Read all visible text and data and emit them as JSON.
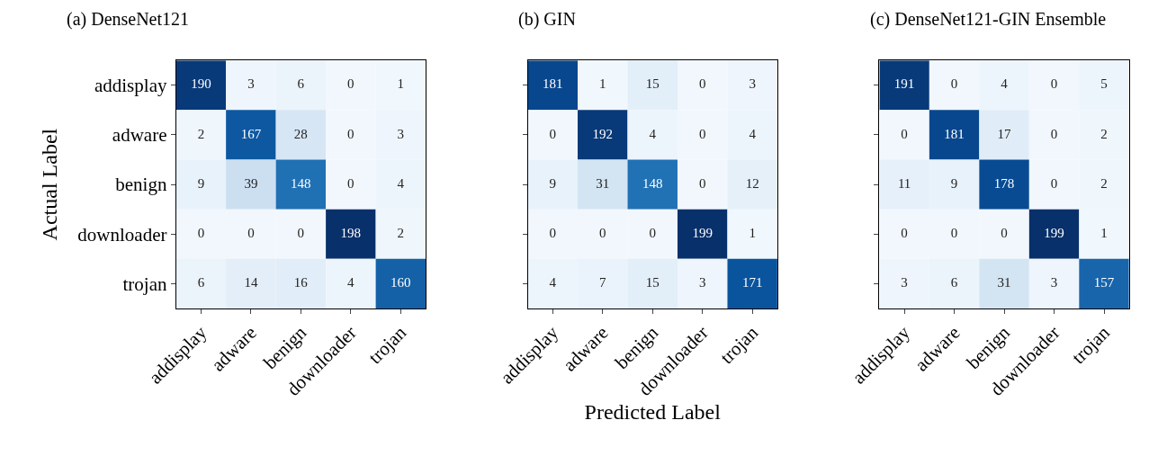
{
  "chart_data": [
    {
      "type": "heatmap",
      "title": "(a) DenseNet121",
      "ylabel": "Actual Label",
      "categories": [
        "addisplay",
        "adware",
        "benign",
        "downloader",
        "trojan"
      ],
      "y_categories": [
        "addisplay",
        "adware",
        "benign",
        "downloader",
        "trojan"
      ],
      "cells": [
        [
          190,
          3,
          6,
          0,
          1
        ],
        [
          2,
          167,
          28,
          0,
          3
        ],
        [
          9,
          39,
          148,
          0,
          4
        ],
        [
          0,
          0,
          0,
          198,
          2
        ],
        [
          6,
          14,
          16,
          4,
          160
        ]
      ],
      "data_labels": true
    },
    {
      "type": "heatmap",
      "title": "(b) GIN",
      "xlabel": "Predicted Label",
      "categories": [
        "addisplay",
        "adware",
        "benign",
        "downloader",
        "trojan"
      ],
      "y_categories": [
        null,
        null,
        null,
        null,
        null
      ],
      "cells": [
        [
          181,
          1,
          15,
          0,
          3
        ],
        [
          0,
          192,
          4,
          0,
          4
        ],
        [
          9,
          31,
          148,
          0,
          12
        ],
        [
          0,
          0,
          0,
          199,
          1
        ],
        [
          4,
          7,
          15,
          3,
          171
        ]
      ],
      "data_labels": true,
      "tick_labels": "x"
    },
    {
      "type": "heatmap",
      "title": "(c) DenseNet121-GIN Ensemble",
      "categories": [
        "addisplay",
        "adware",
        "benign",
        "downloader",
        "trojan"
      ],
      "y_categories": [
        null,
        null,
        null,
        null,
        null
      ],
      "cells": [
        [
          191,
          0,
          4,
          0,
          5
        ],
        [
          0,
          181,
          17,
          0,
          2
        ],
        [
          11,
          9,
          178,
          0,
          2
        ],
        [
          0,
          0,
          0,
          199,
          1
        ],
        [
          3,
          6,
          31,
          3,
          157
        ]
      ],
      "data_labels": true,
      "tick_labels": "x"
    }
  ]
}
